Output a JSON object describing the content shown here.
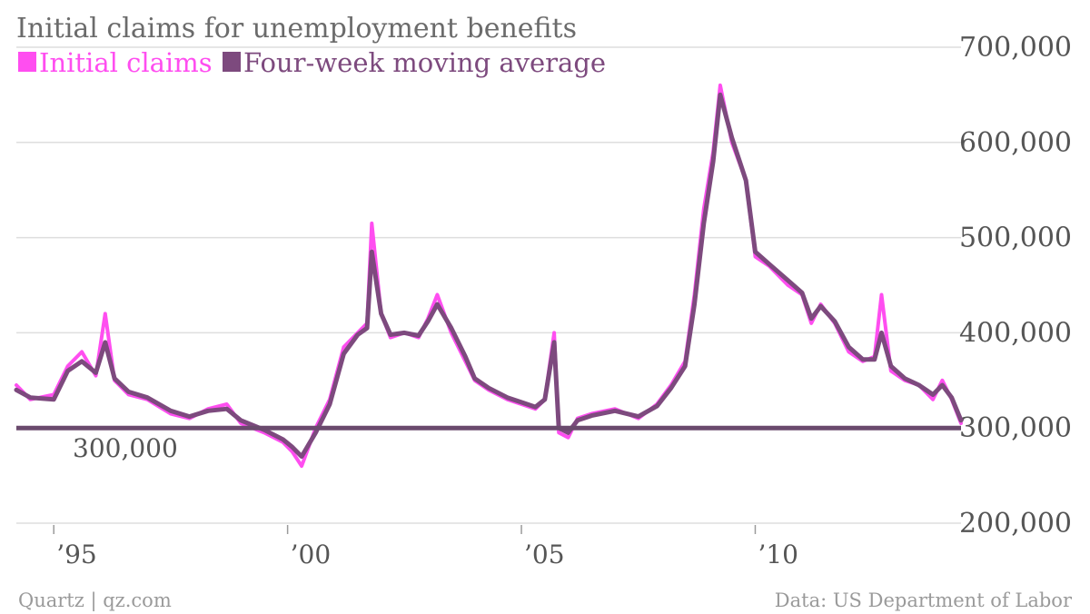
{
  "chart_data": {
    "type": "line",
    "title": "Initial claims for unemployment benefits",
    "legend": [
      {
        "label": "Initial claims",
        "color": "#ff4ef0"
      },
      {
        "label": "Four-week moving average",
        "color": "#7d4a7e"
      }
    ],
    "legend_position": "top-left",
    "y_axis": {
      "position": "right",
      "ylim": [
        200000,
        700000
      ],
      "ticks": [
        700000,
        600000,
        500000,
        400000,
        300000,
        200000
      ],
      "tick_labels": [
        "700,000",
        "600,000",
        "500,000",
        "400,000",
        "300,000",
        "200,000"
      ],
      "grid": true
    },
    "x_axis": {
      "xlim": [
        1994.2,
        2014.4
      ],
      "ticks": [
        1995,
        2000,
        2005,
        2010
      ],
      "tick_labels": [
        "’95",
        "’00",
        "’05",
        "’10"
      ]
    },
    "reference_line": {
      "value": 300000,
      "label": "300,000",
      "color": "#6a4a6d"
    },
    "series": [
      {
        "name": "Initial claims",
        "color": "#ff4ef0",
        "x": [
          1994.2,
          1994.5,
          1995.0,
          1995.3,
          1995.6,
          1995.9,
          1996.1,
          1996.3,
          1996.6,
          1997.0,
          1997.5,
          1997.9,
          1998.3,
          1998.7,
          1999.0,
          1999.5,
          1999.9,
          2000.1,
          2000.3,
          2000.6,
          2000.9,
          2001.2,
          2001.5,
          2001.7,
          2001.8,
          2002.0,
          2002.2,
          2002.5,
          2002.8,
          2003.0,
          2003.2,
          2003.5,
          2003.8,
          2004.0,
          2004.3,
          2004.7,
          2005.0,
          2005.3,
          2005.5,
          2005.7,
          2005.8,
          2006.0,
          2006.2,
          2006.5,
          2007.0,
          2007.5,
          2007.9,
          2008.2,
          2008.5,
          2008.7,
          2008.9,
          2009.1,
          2009.25,
          2009.5,
          2009.8,
          2010.0,
          2010.3,
          2010.7,
          2011.0,
          2011.2,
          2011.4,
          2011.7,
          2012.0,
          2012.3,
          2012.55,
          2012.7,
          2012.9,
          2013.2,
          2013.5,
          2013.8,
          2014.0,
          2014.2,
          2014.4
        ],
        "y": [
          345000,
          330000,
          335000,
          365000,
          380000,
          355000,
          420000,
          350000,
          335000,
          330000,
          315000,
          310000,
          320000,
          325000,
          305000,
          295000,
          285000,
          275000,
          260000,
          300000,
          330000,
          385000,
          400000,
          410000,
          515000,
          420000,
          395000,
          400000,
          395000,
          415000,
          440000,
          400000,
          370000,
          350000,
          340000,
          330000,
          325000,
          320000,
          330000,
          400000,
          295000,
          290000,
          310000,
          315000,
          320000,
          310000,
          325000,
          345000,
          370000,
          440000,
          530000,
          590000,
          660000,
          600000,
          560000,
          480000,
          470000,
          450000,
          440000,
          410000,
          430000,
          410000,
          380000,
          370000,
          375000,
          440000,
          360000,
          350000,
          345000,
          330000,
          350000,
          330000,
          305000
        ]
      },
      {
        "name": "Four-week moving average",
        "color": "#7d4a7e",
        "x": [
          1994.2,
          1994.5,
          1995.0,
          1995.3,
          1995.6,
          1995.9,
          1996.1,
          1996.3,
          1996.6,
          1997.0,
          1997.5,
          1997.9,
          1998.3,
          1998.7,
          1999.0,
          1999.5,
          1999.9,
          2000.1,
          2000.3,
          2000.6,
          2000.9,
          2001.2,
          2001.5,
          2001.7,
          2001.8,
          2002.0,
          2002.2,
          2002.5,
          2002.8,
          2003.0,
          2003.2,
          2003.5,
          2003.8,
          2004.0,
          2004.3,
          2004.7,
          2005.0,
          2005.3,
          2005.5,
          2005.7,
          2005.8,
          2006.0,
          2006.2,
          2006.5,
          2007.0,
          2007.5,
          2007.9,
          2008.2,
          2008.5,
          2008.7,
          2008.9,
          2009.1,
          2009.25,
          2009.5,
          2009.8,
          2010.0,
          2010.3,
          2010.7,
          2011.0,
          2011.2,
          2011.4,
          2011.7,
          2012.0,
          2012.3,
          2012.55,
          2012.7,
          2012.9,
          2013.2,
          2013.5,
          2013.8,
          2014.0,
          2014.2,
          2014.4
        ],
        "y": [
          340000,
          332000,
          330000,
          360000,
          370000,
          358000,
          390000,
          352000,
          338000,
          332000,
          318000,
          312000,
          318000,
          320000,
          308000,
          298000,
          288000,
          280000,
          270000,
          295000,
          325000,
          378000,
          398000,
          405000,
          485000,
          420000,
          398000,
          400000,
          397000,
          412000,
          430000,
          405000,
          375000,
          352000,
          342000,
          332000,
          327000,
          322000,
          330000,
          390000,
          300000,
          295000,
          308000,
          313000,
          318000,
          312000,
          323000,
          342000,
          365000,
          430000,
          515000,
          580000,
          650000,
          605000,
          560000,
          485000,
          472000,
          455000,
          442000,
          415000,
          428000,
          412000,
          385000,
          372000,
          372000,
          400000,
          365000,
          352000,
          345000,
          335000,
          345000,
          332000,
          308000
        ]
      }
    ]
  },
  "footer": {
    "source_left": "Quartz | qz.com",
    "source_right": "Data: US Department of Labor"
  }
}
